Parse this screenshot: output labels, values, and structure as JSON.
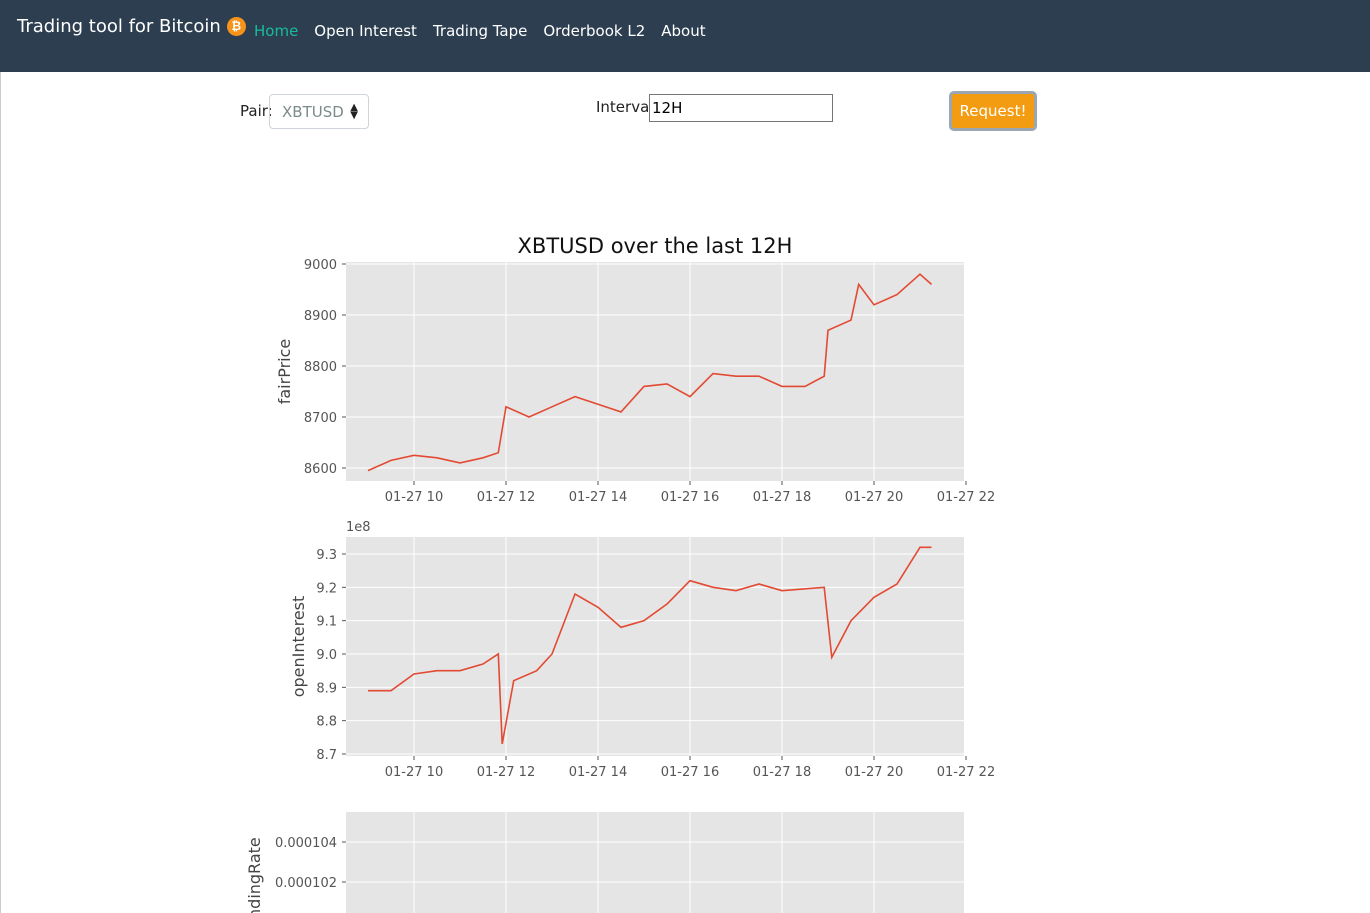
{
  "nav": {
    "brand": "Trading tool for Bitcoin",
    "brand_icon": "bitcoin-icon",
    "items": [
      {
        "label": "Home",
        "active": true
      },
      {
        "label": "Open Interest",
        "active": false
      },
      {
        "label": "Trading Tape",
        "active": false
      },
      {
        "label": "Orderbook L2",
        "active": false
      },
      {
        "label": "About",
        "active": false
      }
    ]
  },
  "form": {
    "pair_label": "Pair:",
    "pair_value": "XBTUSD",
    "interval_label": "Interval:",
    "interval_value": "12H",
    "request_label": "Request!"
  },
  "colors": {
    "nav_bg": "#2c3e50",
    "active": "#18bc9c",
    "button": "#f39c12",
    "line": "#e24a33",
    "plot_bg": "#e5e5e5"
  },
  "chart_data": [
    {
      "type": "line",
      "title": "XBTUSD over the last 12H",
      "ylabel": "fairPrice",
      "xlabel": "",
      "x_ticks": [
        "01-27 10",
        "01-27 12",
        "01-27 14",
        "01-27 16",
        "01-27 18",
        "01-27 20",
        "01-27 22"
      ],
      "y_ticks": [
        "8600",
        "8700",
        "8800",
        "8900",
        "9000"
      ],
      "ylim": [
        8575,
        9005
      ],
      "x": [
        "01-27 09:00",
        "01-27 09:30",
        "01-27 10:00",
        "01-27 10:30",
        "01-27 11:00",
        "01-27 11:30",
        "01-27 11:50",
        "01-27 12:00",
        "01-27 12:30",
        "01-27 13:00",
        "01-27 13:30",
        "01-27 14:00",
        "01-27 14:30",
        "01-27 15:00",
        "01-27 15:30",
        "01-27 16:00",
        "01-27 16:30",
        "01-27 17:00",
        "01-27 17:30",
        "01-27 18:00",
        "01-27 18:30",
        "01-27 18:55",
        "01-27 19:00",
        "01-27 19:30",
        "01-27 19:40",
        "01-27 20:00",
        "01-27 20:30",
        "01-27 21:00",
        "01-27 21:15"
      ],
      "values": [
        8595,
        8615,
        8625,
        8620,
        8610,
        8620,
        8630,
        8720,
        8700,
        8720,
        8740,
        8725,
        8710,
        8760,
        8765,
        8740,
        8785,
        8780,
        8780,
        8760,
        8760,
        8780,
        8870,
        8890,
        8960,
        8920,
        8940,
        8980,
        8960
      ]
    },
    {
      "type": "line",
      "title": "",
      "ylabel": "openInterest",
      "xlabel": "",
      "offset_label": "1e8",
      "x_ticks": [
        "01-27 10",
        "01-27 12",
        "01-27 14",
        "01-27 16",
        "01-27 18",
        "01-27 20",
        "01-27 22"
      ],
      "y_ticks": [
        "8.7",
        "8.8",
        "8.9",
        "9.0",
        "9.1",
        "9.2",
        "9.3"
      ],
      "ylim": [
        8.7,
        9.33
      ],
      "x": [
        "01-27 09:00",
        "01-27 09:30",
        "01-27 10:00",
        "01-27 10:30",
        "01-27 11:00",
        "01-27 11:30",
        "01-27 11:50",
        "01-27 11:55",
        "01-27 12:10",
        "01-27 12:40",
        "01-27 13:00",
        "01-27 13:30",
        "01-27 14:00",
        "01-27 14:30",
        "01-27 15:00",
        "01-27 15:30",
        "01-27 16:00",
        "01-27 16:30",
        "01-27 17:00",
        "01-27 17:30",
        "01-27 18:00",
        "01-27 18:55",
        "01-27 19:05",
        "01-27 19:30",
        "01-27 20:00",
        "01-27 20:30",
        "01-27 21:00",
        "01-27 21:15"
      ],
      "values": [
        8.89,
        8.89,
        8.94,
        8.95,
        8.95,
        8.97,
        9.0,
        8.73,
        8.92,
        8.95,
        9.0,
        9.18,
        9.14,
        9.08,
        9.1,
        9.15,
        9.22,
        9.2,
        9.19,
        9.21,
        9.19,
        9.2,
        8.99,
        9.1,
        9.17,
        9.21,
        9.32,
        9.32
      ]
    },
    {
      "type": "line",
      "title": "",
      "ylabel": "fundingRate",
      "xlabel": "",
      "y_ticks": [
        "0.000102",
        "0.000104"
      ],
      "values": []
    }
  ]
}
